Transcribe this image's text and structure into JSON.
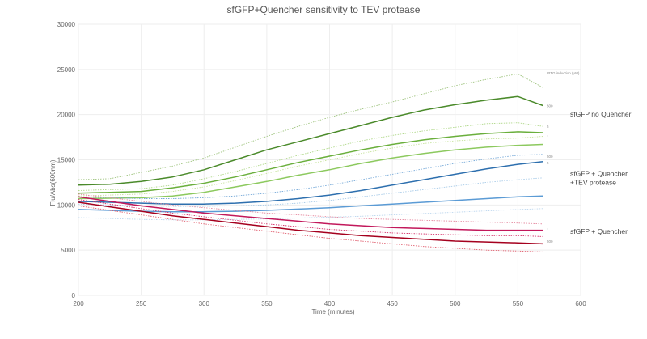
{
  "chart_data": {
    "type": "line",
    "title": "sfGFP+Quencher sensitivity to TEV protease",
    "xlabel": "Time (minutes)",
    "ylabel": "Flu/Abs(600nm)",
    "xlim": [
      200,
      600
    ],
    "ylim": [
      0,
      30000
    ],
    "x_ticks": [
      200,
      250,
      300,
      350,
      400,
      450,
      500,
      550,
      600
    ],
    "y_ticks": [
      0,
      5000,
      10000,
      15000,
      20000,
      25000,
      30000
    ],
    "x_tick_labels": [
      "200",
      "250",
      "300",
      "350",
      "400",
      "450",
      "500",
      "550",
      "600"
    ],
    "y_tick_labels": [
      "0",
      "5000",
      "10000",
      "15000",
      "20000",
      "25000",
      "30000"
    ],
    "grid": true,
    "legend_note": "IPTG induction (μM)",
    "group_labels": [
      {
        "lines": [
          "sfGFP no Quencher"
        ],
        "y": 19800
      },
      {
        "lines": [
          "sfGFP + Quencher",
          "+TEV protease"
        ],
        "y": 13200
      },
      {
        "lines": [
          "sfGFP + Quencher"
        ],
        "y": 6800
      }
    ],
    "series_end_labels": [
      {
        "text": "500",
        "y": 21000
      },
      {
        "text": "5",
        "y": 18700
      },
      {
        "text": "1",
        "y": 17600
      },
      {
        "text": "500",
        "y": 15400
      },
      {
        "text": "5",
        "y": 14700
      },
      {
        "text": "1",
        "y": 7300
      },
      {
        "text": "500",
        "y": 6000
      }
    ],
    "x": [
      200,
      225,
      250,
      275,
      300,
      325,
      350,
      375,
      400,
      425,
      450,
      475,
      500,
      525,
      550,
      570
    ],
    "series": [
      {
        "color": "#9fc47f",
        "dashed": true,
        "values": [
          12800,
          12900,
          13600,
          14300,
          15200,
          16400,
          17600,
          18700,
          19700,
          20600,
          21400,
          22300,
          23200,
          23900,
          24500,
          23000
        ]
      },
      {
        "color": "#4a8a2a",
        "dashed": false,
        "values": [
          12200,
          12300,
          12600,
          13100,
          13900,
          15000,
          16100,
          17000,
          17900,
          18800,
          19700,
          20500,
          21100,
          21600,
          22000,
          21000
        ]
      },
      {
        "color": "#b0d88a",
        "dashed": true,
        "values": [
          11600,
          11700,
          11800,
          12200,
          12900,
          13700,
          14600,
          15500,
          16300,
          17100,
          17700,
          18200,
          18600,
          19000,
          19100,
          18700
        ]
      },
      {
        "color": "#6aaf3c",
        "dashed": false,
        "values": [
          11300,
          11400,
          11500,
          11900,
          12400,
          13100,
          13900,
          14700,
          15400,
          16100,
          16700,
          17200,
          17600,
          17900,
          18100,
          18000
        ]
      },
      {
        "color": "#c6e39c",
        "dashed": true,
        "values": [
          11000,
          11100,
          11200,
          11500,
          12000,
          12700,
          13500,
          14300,
          15000,
          15700,
          16300,
          16800,
          17100,
          17300,
          17400,
          17600
        ]
      },
      {
        "color": "#8cc95e",
        "dashed": false,
        "values": [
          10700,
          10750,
          10800,
          11000,
          11400,
          12000,
          12600,
          13300,
          13900,
          14600,
          15200,
          15700,
          16100,
          16400,
          16600,
          16700
        ]
      },
      {
        "color": "#76a9d8",
        "dashed": true,
        "values": [
          10900,
          10800,
          10700,
          10700,
          10800,
          11000,
          11300,
          11700,
          12200,
          12800,
          13400,
          14000,
          14600,
          15100,
          15500,
          15600
        ]
      },
      {
        "color": "#2d6fae",
        "dashed": false,
        "values": [
          10400,
          10300,
          10200,
          10100,
          10100,
          10200,
          10400,
          10700,
          11100,
          11600,
          12200,
          12800,
          13400,
          14000,
          14500,
          14800
        ]
      },
      {
        "color": "#a8cbe8",
        "dashed": true,
        "values": [
          10100,
          10000,
          9900,
          9850,
          9850,
          9900,
          10000,
          10200,
          10500,
          10900,
          11300,
          11700,
          12100,
          12500,
          12800,
          13000
        ]
      },
      {
        "color": "#5b9bd5",
        "dashed": false,
        "values": [
          9500,
          9400,
          9300,
          9250,
          9250,
          9300,
          9400,
          9550,
          9700,
          9900,
          10100,
          10300,
          10500,
          10700,
          10900,
          11000
        ]
      },
      {
        "color": "#bcd6ee",
        "dashed": true,
        "values": [
          8600,
          8500,
          8400,
          8350,
          8350,
          8400,
          8450,
          8550,
          8650,
          8750,
          8900,
          9050,
          9200,
          9350,
          9500,
          9600
        ]
      },
      {
        "color": "#e58aa0",
        "dashed": true,
        "values": [
          11200,
          10800,
          10400,
          10000,
          9700,
          9400,
          9100,
          8900,
          8700,
          8500,
          8400,
          8300,
          8200,
          8100,
          8000,
          7900
        ]
      },
      {
        "color": "#c2185b",
        "dashed": false,
        "values": [
          10900,
          10400,
          9900,
          9500,
          9100,
          8800,
          8500,
          8200,
          7900,
          7700,
          7500,
          7400,
          7300,
          7200,
          7200,
          7200
        ]
      },
      {
        "color": "#d6336c",
        "dashed": true,
        "values": [
          10600,
          10100,
          9600,
          9100,
          8700,
          8300,
          7900,
          7600,
          7300,
          7100,
          6900,
          6800,
          6700,
          6600,
          6600,
          6500
        ]
      },
      {
        "color": "#a5001e",
        "dashed": false,
        "values": [
          10300,
          9800,
          9300,
          8800,
          8400,
          8000,
          7600,
          7200,
          6900,
          6600,
          6400,
          6200,
          6000,
          5900,
          5800,
          5700
        ]
      },
      {
        "color": "#e06070",
        "dashed": true,
        "values": [
          9900,
          9400,
          8900,
          8400,
          7900,
          7500,
          7100,
          6700,
          6300,
          6000,
          5700,
          5400,
          5200,
          5000,
          4900,
          4800
        ]
      }
    ]
  }
}
